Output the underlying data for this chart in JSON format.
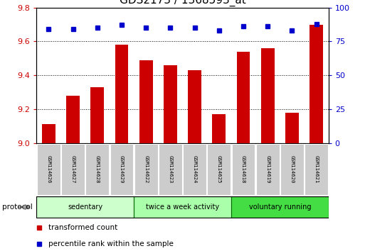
{
  "title": "GDS2173 / 1368593_at",
  "samples": [
    "GSM114626",
    "GSM114627",
    "GSM114628",
    "GSM114629",
    "GSM114622",
    "GSM114623",
    "GSM114624",
    "GSM114625",
    "GSM114618",
    "GSM114619",
    "GSM114620",
    "GSM114621"
  ],
  "transformed_counts": [
    9.11,
    9.28,
    9.33,
    9.58,
    9.49,
    9.46,
    9.43,
    9.17,
    9.54,
    9.56,
    9.18,
    9.7
  ],
  "percentile_ranks": [
    84,
    84,
    85,
    87,
    85,
    85,
    85,
    83,
    86,
    86,
    83,
    88
  ],
  "bar_color": "#cc0000",
  "dot_color": "#0000cc",
  "ylim_left": [
    9.0,
    9.8
  ],
  "ylim_right": [
    0,
    100
  ],
  "yticks_left": [
    9.0,
    9.2,
    9.4,
    9.6,
    9.8
  ],
  "yticks_right": [
    0,
    25,
    50,
    75,
    100
  ],
  "groups": [
    {
      "label": "sedentary",
      "start": 0,
      "end": 3,
      "color": "#ccffcc"
    },
    {
      "label": "twice a week activity",
      "start": 4,
      "end": 7,
      "color": "#aaffaa"
    },
    {
      "label": "voluntary running",
      "start": 8,
      "end": 11,
      "color": "#44dd44"
    }
  ],
  "protocol_label": "protocol",
  "legend_bar_label": "transformed count",
  "legend_dot_label": "percentile rank within the sample",
  "title_fontsize": 11,
  "axis_label_color_left": "#cc0000",
  "axis_label_color_right": "#0000cc",
  "grid_color": "#000000",
  "bar_bottom": 9.0,
  "figsize": [
    5.13,
    3.54
  ],
  "dpi": 100
}
